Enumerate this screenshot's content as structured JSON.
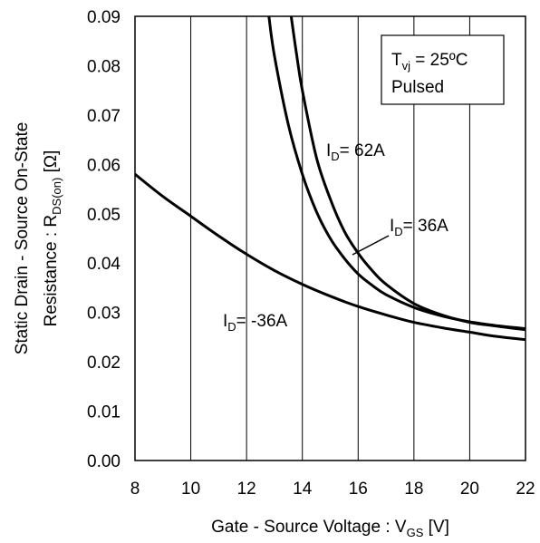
{
  "chart_data": {
    "type": "line",
    "title": "",
    "xlabel": "Gate - Source Voltage : VGS [V]",
    "xlabel_parts": {
      "main": "Gate - Source Voltage : V",
      "sub": "GS",
      "tail": " [V]"
    },
    "ylabel": "Static Drain - Source On-State Resistance : RDS(on) [Ω]",
    "ylabel_line1": "Static Drain - Source On-State",
    "ylabel_line2_parts": {
      "main": "Resistance : R",
      "sub": "DS(on)",
      "tail": " [Ω]"
    },
    "xlim": [
      8,
      22
    ],
    "ylim": [
      0,
      0.09
    ],
    "xticks": [
      "8",
      "10",
      "12",
      "14",
      "16",
      "18",
      "20",
      "22"
    ],
    "yticks": [
      "0.00",
      "0.01",
      "0.02",
      "0.03",
      "0.04",
      "0.05",
      "0.06",
      "0.07",
      "0.08",
      "0.09"
    ],
    "grid": {
      "vertical": true,
      "horizontal": false
    },
    "conditions": {
      "line1": {
        "main": "T",
        "sub": "vj",
        "tail": " = 25ºC"
      },
      "line2": "Pulsed",
      "placement": "top-right"
    },
    "series": [
      {
        "label_parts": {
          "main": "I",
          "sub": "D",
          "tail": "= 62A"
        },
        "x": [
          13.6,
          13.8,
          14.0,
          14.5,
          15.0,
          15.5,
          16.0,
          16.5,
          17.0,
          18.0,
          19.0,
          20.0,
          21.0,
          22.0
        ],
        "y": [
          0.09,
          0.082,
          0.075,
          0.0615,
          0.053,
          0.0465,
          0.042,
          0.0385,
          0.0357,
          0.0318,
          0.0295,
          0.028,
          0.0272,
          0.0265
        ]
      },
      {
        "label_parts": {
          "main": "I",
          "sub": "D",
          "tail": "= 36A"
        },
        "x": [
          12.8,
          13.0,
          13.5,
          14.0,
          14.5,
          15.0,
          15.5,
          16.0,
          16.5,
          17.0,
          18.0,
          19.0,
          20.0,
          21.0,
          22.0
        ],
        "y": [
          0.09,
          0.082,
          0.068,
          0.058,
          0.0505,
          0.045,
          0.041,
          0.0378,
          0.0355,
          0.0336,
          0.031,
          0.0293,
          0.0281,
          0.0273,
          0.0267
        ]
      },
      {
        "label_parts": {
          "main": "I",
          "sub": "D",
          "tail": " -36A"
        },
        "label_prefix": "I",
        "x": [
          8,
          9,
          10,
          11,
          12,
          13,
          14,
          15,
          16,
          17,
          18,
          19,
          20,
          21,
          22
        ],
        "y": [
          0.058,
          0.0535,
          0.0495,
          0.0455,
          0.0418,
          0.0385,
          0.0357,
          0.0333,
          0.0312,
          0.0295,
          0.028,
          0.0269,
          0.026,
          0.0251,
          0.0245
        ]
      }
    ]
  }
}
